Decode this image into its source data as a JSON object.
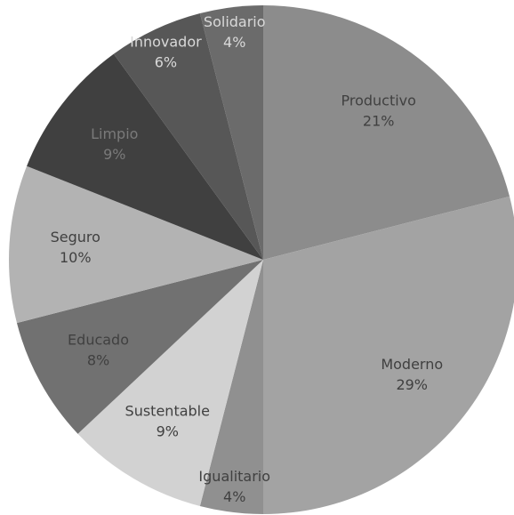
{
  "chart_data": {
    "type": "pie",
    "categories": [
      "Productivo",
      "Moderno",
      "Igualitario",
      "Sustentable",
      "Educado",
      "Seguro",
      "Limpio",
      "Innovador",
      "Solidario"
    ],
    "values": [
      21,
      29,
      4,
      9,
      8,
      10,
      9,
      6,
      4
    ],
    "value_labels": [
      "21%",
      "29%",
      "4%",
      "9%",
      "8%",
      "10%",
      "9%",
      "6%",
      "4%"
    ],
    "colors": [
      "#8c8c8c",
      "#a3a3a3",
      "#909090",
      "#d2d2d2",
      "#717171",
      "#b3b3b3",
      "#404040",
      "#575757",
      "#6b6b6b"
    ],
    "label_colors": [
      "#404040",
      "#404040",
      "#404040",
      "#404040",
      "#404040",
      "#404040",
      "#7a7a7a",
      "#d9d9d9",
      "#d9d9d9"
    ]
  }
}
